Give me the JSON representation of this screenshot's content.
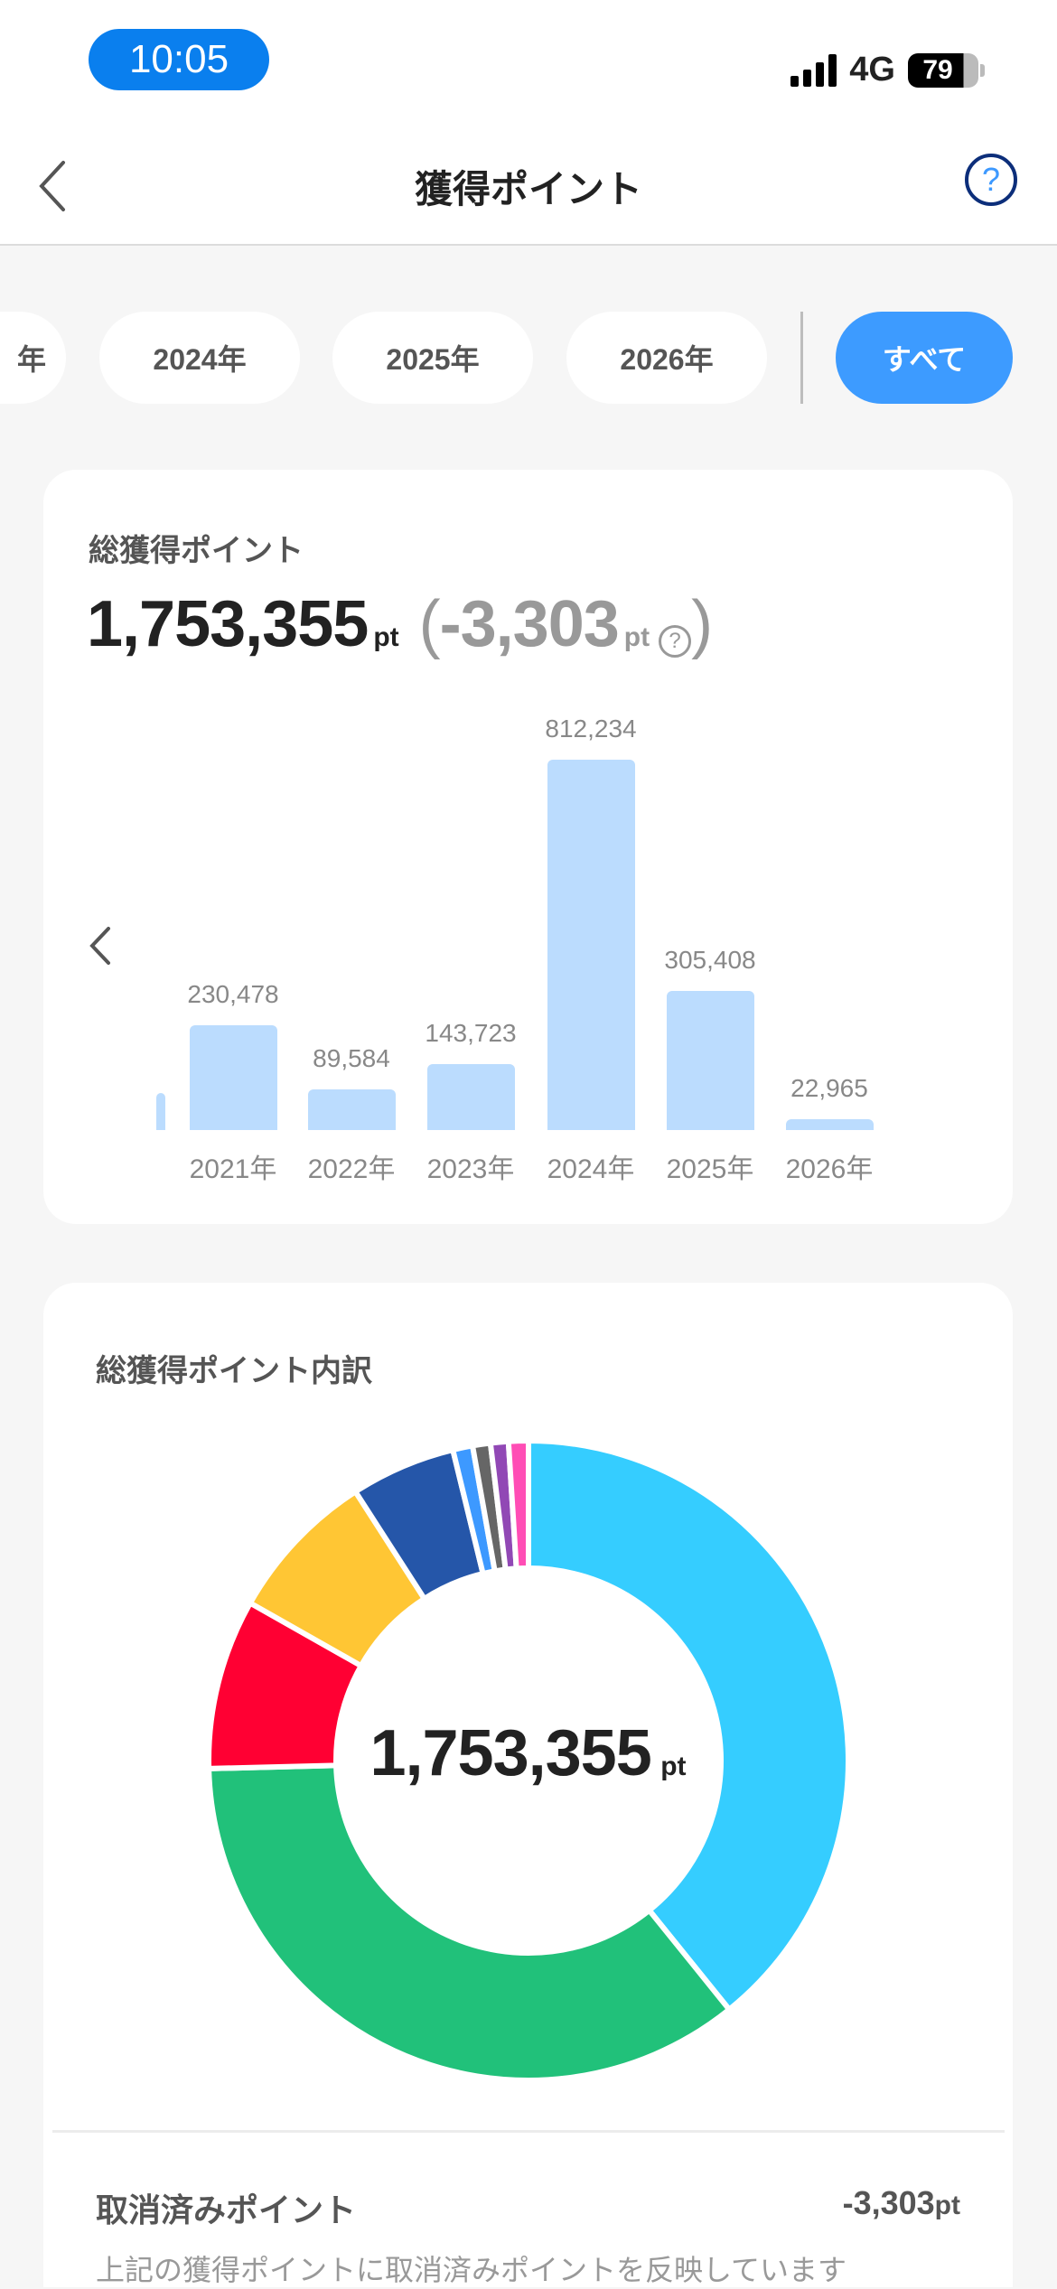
{
  "status_bar": {
    "time": "10:05",
    "network": "4G",
    "battery": "79"
  },
  "nav": {
    "title": "獲得ポイント",
    "help_label": "?"
  },
  "year_tabs": [
    {
      "label": "年",
      "active": false
    },
    {
      "label": "2024年",
      "active": false
    },
    {
      "label": "2025年",
      "active": false
    },
    {
      "label": "2026年",
      "active": false
    },
    {
      "label": "すべて",
      "active": true
    }
  ],
  "summary": {
    "title": "総獲得ポイント",
    "total": "1,753,355",
    "unit": "pt",
    "paren_open": "(",
    "cancelled": "-3,303",
    "paren_close": ")",
    "help_label": "?"
  },
  "breakdown": {
    "title": "総獲得ポイント内訳",
    "center_total": "1,753,355",
    "unit": "pt",
    "cancel_label": "取消済みポイント",
    "cancel_value": "-3,303",
    "cancel_unit": "pt",
    "note": "上記の獲得ポイントに取消済みポイントを反映しています"
  },
  "colors": {
    "accent": "#3d9bff",
    "bar": "#bbdcfe",
    "background": "#f6f6f6"
  },
  "chart_data": [
    {
      "type": "bar",
      "categories": [
        "2021年",
        "2022年",
        "2023年",
        "2024年",
        "2025年",
        "2026年"
      ],
      "values": [
        230478,
        89584,
        143723,
        812234,
        305408,
        22965
      ],
      "value_labels": [
        "230,478",
        "89,584",
        "143,723",
        "812,234",
        "305,408",
        "22,965"
      ],
      "ylim": [
        0,
        812234
      ],
      "grid": false,
      "scrollable_left": true
    },
    {
      "type": "pie",
      "donut": true,
      "values_percent": [
        39.2,
        35.4,
        8.6,
        7.7,
        5.3,
        1.0,
        0.9,
        0.9,
        1.0
      ],
      "colors": [
        "#35cdff",
        "#21c17a",
        "#ff0033",
        "#ffc634",
        "#2556a9",
        "#3d99ff",
        "#666666",
        "#9148b5",
        "#ff4db5"
      ]
    }
  ]
}
